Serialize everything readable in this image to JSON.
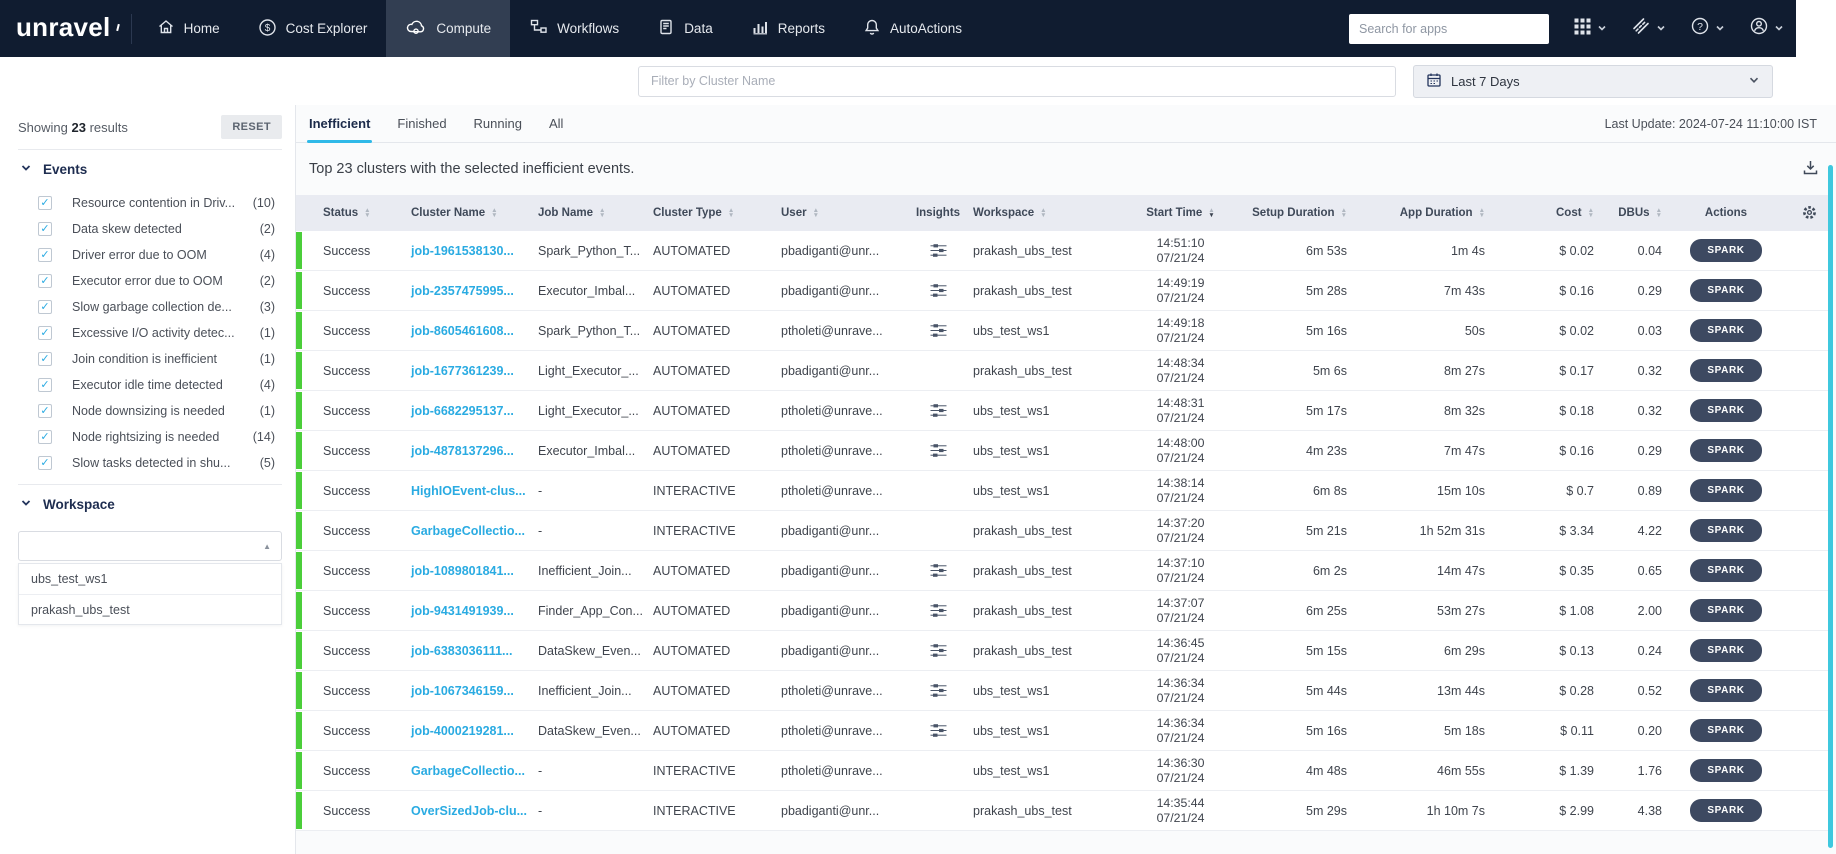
{
  "nav": {
    "logo": "unravel",
    "items": [
      {
        "label": "Home"
      },
      {
        "label": "Cost Explorer"
      },
      {
        "label": "Compute",
        "active": true
      },
      {
        "label": "Workflows"
      },
      {
        "label": "Data"
      },
      {
        "label": "Reports"
      },
      {
        "label": "AutoActions"
      }
    ],
    "search_placeholder": "Search for apps"
  },
  "filter_bar": {
    "cluster_filter_placeholder": "Filter by Cluster Name",
    "date_range_label": "Last 7 Days"
  },
  "sidebar": {
    "results_prefix": "Showing",
    "results_count": "23",
    "results_suffix": "results",
    "reset_label": "RESET",
    "events": {
      "title": "Events",
      "items": [
        {
          "label": "Resource contention in Driv...",
          "count": "(10)"
        },
        {
          "label": "Data skew detected",
          "count": "(2)"
        },
        {
          "label": "Driver error due to OOM",
          "count": "(4)"
        },
        {
          "label": "Executor error due to OOM",
          "count": "(2)"
        },
        {
          "label": "Slow garbage collection de...",
          "count": "(3)"
        },
        {
          "label": "Excessive I/O activity detec...",
          "count": "(1)"
        },
        {
          "label": "Join condition is inefficient",
          "count": "(1)"
        },
        {
          "label": "Executor idle time detected",
          "count": "(4)"
        },
        {
          "label": "Node downsizing is needed",
          "count": "(1)"
        },
        {
          "label": "Node rightsizing is needed",
          "count": "(14)"
        },
        {
          "label": "Slow tasks detected in shu...",
          "count": "(5)"
        }
      ]
    },
    "workspace": {
      "title": "Workspace",
      "options": [
        "ubs_test_ws1",
        "prakash_ubs_test"
      ]
    }
  },
  "toolbar": {
    "tabs": [
      {
        "label": "Inefficient",
        "active": true
      },
      {
        "label": "Finished"
      },
      {
        "label": "Running"
      },
      {
        "label": "All"
      }
    ],
    "last_update": "Last Update: 2024-07-24 11:10:00 IST"
  },
  "table": {
    "title": "Top 23 clusters with the selected inefficient events.",
    "columns": [
      "Status",
      "Cluster Name",
      "Job Name",
      "Cluster Type",
      "User",
      "Insights",
      "Workspace",
      "Start Time",
      "Setup Duration",
      "App Duration",
      "Cost",
      "DBUs",
      "Actions"
    ],
    "rows": [
      {
        "status": "Success",
        "cluster_name": "job-1961538130...",
        "job_name": "Spark_Python_T...",
        "cluster_type": "AUTOMATED",
        "user": "pbadiganti@unr...",
        "has_insights": true,
        "workspace": "prakash_ubs_test",
        "start_time": "14:51:10",
        "start_date": "07/21/24",
        "setup_duration": "6m 53s",
        "app_duration": "1m 4s",
        "cost": "$ 0.02",
        "dbus": "0.04",
        "action": "SPARK"
      },
      {
        "status": "Success",
        "cluster_name": "job-2357475995...",
        "job_name": "Executor_Imbal...",
        "cluster_type": "AUTOMATED",
        "user": "pbadiganti@unr...",
        "has_insights": true,
        "workspace": "prakash_ubs_test",
        "start_time": "14:49:19",
        "start_date": "07/21/24",
        "setup_duration": "5m 28s",
        "app_duration": "7m 43s",
        "cost": "$ 0.16",
        "dbus": "0.29",
        "action": "SPARK"
      },
      {
        "status": "Success",
        "cluster_name": "job-8605461608...",
        "job_name": "Spark_Python_T...",
        "cluster_type": "AUTOMATED",
        "user": "ptholeti@unrave...",
        "has_insights": true,
        "workspace": "ubs_test_ws1",
        "start_time": "14:49:18",
        "start_date": "07/21/24",
        "setup_duration": "5m 16s",
        "app_duration": "50s",
        "cost": "$ 0.02",
        "dbus": "0.03",
        "action": "SPARK"
      },
      {
        "status": "Success",
        "cluster_name": "job-1677361239...",
        "job_name": "Light_Executor_...",
        "cluster_type": "AUTOMATED",
        "user": "pbadiganti@unr...",
        "has_insights": false,
        "workspace": "prakash_ubs_test",
        "start_time": "14:48:34",
        "start_date": "07/21/24",
        "setup_duration": "5m 6s",
        "app_duration": "8m 27s",
        "cost": "$ 0.17",
        "dbus": "0.32",
        "action": "SPARK"
      },
      {
        "status": "Success",
        "cluster_name": "job-6682295137...",
        "job_name": "Light_Executor_...",
        "cluster_type": "AUTOMATED",
        "user": "ptholeti@unrave...",
        "has_insights": true,
        "workspace": "ubs_test_ws1",
        "start_time": "14:48:31",
        "start_date": "07/21/24",
        "setup_duration": "5m 17s",
        "app_duration": "8m 32s",
        "cost": "$ 0.18",
        "dbus": "0.32",
        "action": "SPARK"
      },
      {
        "status": "Success",
        "cluster_name": "job-4878137296...",
        "job_name": "Executor_Imbal...",
        "cluster_type": "AUTOMATED",
        "user": "ptholeti@unrave...",
        "has_insights": true,
        "workspace": "ubs_test_ws1",
        "start_time": "14:48:00",
        "start_date": "07/21/24",
        "setup_duration": "4m 23s",
        "app_duration": "7m 47s",
        "cost": "$ 0.16",
        "dbus": "0.29",
        "action": "SPARK"
      },
      {
        "status": "Success",
        "cluster_name": "HighIOEvent-clus...",
        "job_name": "-",
        "cluster_type": "INTERACTIVE",
        "user": "ptholeti@unrave...",
        "has_insights": false,
        "workspace": "ubs_test_ws1",
        "start_time": "14:38:14",
        "start_date": "07/21/24",
        "setup_duration": "6m 8s",
        "app_duration": "15m 10s",
        "cost": "$ 0.7",
        "dbus": "0.89",
        "action": "SPARK"
      },
      {
        "status": "Success",
        "cluster_name": "GarbageCollectio...",
        "job_name": "-",
        "cluster_type": "INTERACTIVE",
        "user": "pbadiganti@unr...",
        "has_insights": false,
        "workspace": "prakash_ubs_test",
        "start_time": "14:37:20",
        "start_date": "07/21/24",
        "setup_duration": "5m 21s",
        "app_duration": "1h 52m 31s",
        "cost": "$ 3.34",
        "dbus": "4.22",
        "action": "SPARK"
      },
      {
        "status": "Success",
        "cluster_name": "job-1089801841...",
        "job_name": "Inefficient_Join...",
        "cluster_type": "AUTOMATED",
        "user": "pbadiganti@unr...",
        "has_insights": true,
        "workspace": "prakash_ubs_test",
        "start_time": "14:37:10",
        "start_date": "07/21/24",
        "setup_duration": "6m 2s",
        "app_duration": "14m 47s",
        "cost": "$ 0.35",
        "dbus": "0.65",
        "action": "SPARK"
      },
      {
        "status": "Success",
        "cluster_name": "job-9431491939...",
        "job_name": "Finder_App_Con...",
        "cluster_type": "AUTOMATED",
        "user": "pbadiganti@unr...",
        "has_insights": true,
        "workspace": "prakash_ubs_test",
        "start_time": "14:37:07",
        "start_date": "07/21/24",
        "setup_duration": "6m 25s",
        "app_duration": "53m 27s",
        "cost": "$ 1.08",
        "dbus": "2.00",
        "action": "SPARK"
      },
      {
        "status": "Success",
        "cluster_name": "job-6383036111...",
        "job_name": "DataSkew_Even...",
        "cluster_type": "AUTOMATED",
        "user": "pbadiganti@unr...",
        "has_insights": true,
        "workspace": "prakash_ubs_test",
        "start_time": "14:36:45",
        "start_date": "07/21/24",
        "setup_duration": "5m 15s",
        "app_duration": "6m 29s",
        "cost": "$ 0.13",
        "dbus": "0.24",
        "action": "SPARK"
      },
      {
        "status": "Success",
        "cluster_name": "job-1067346159...",
        "job_name": "Inefficient_Join...",
        "cluster_type": "AUTOMATED",
        "user": "ptholeti@unrave...",
        "has_insights": true,
        "workspace": "ubs_test_ws1",
        "start_time": "14:36:34",
        "start_date": "07/21/24",
        "setup_duration": "5m 44s",
        "app_duration": "13m 44s",
        "cost": "$ 0.28",
        "dbus": "0.52",
        "action": "SPARK"
      },
      {
        "status": "Success",
        "cluster_name": "job-4000219281...",
        "job_name": "DataSkew_Even...",
        "cluster_type": "AUTOMATED",
        "user": "ptholeti@unrave...",
        "has_insights": true,
        "workspace": "ubs_test_ws1",
        "start_time": "14:36:34",
        "start_date": "07/21/24",
        "setup_duration": "5m 16s",
        "app_duration": "5m 18s",
        "cost": "$ 0.11",
        "dbus": "0.20",
        "action": "SPARK"
      },
      {
        "status": "Success",
        "cluster_name": "GarbageCollectio...",
        "job_name": "-",
        "cluster_type": "INTERACTIVE",
        "user": "ptholeti@unrave...",
        "has_insights": false,
        "workspace": "ubs_test_ws1",
        "start_time": "14:36:30",
        "start_date": "07/21/24",
        "setup_duration": "4m 48s",
        "app_duration": "46m 55s",
        "cost": "$ 1.39",
        "dbus": "1.76",
        "action": "SPARK"
      },
      {
        "status": "Success",
        "cluster_name": "OverSizedJob-clu...",
        "job_name": "-",
        "cluster_type": "INTERACTIVE",
        "user": "pbadiganti@unr...",
        "has_insights": false,
        "workspace": "prakash_ubs_test",
        "start_time": "14:35:44",
        "start_date": "07/21/24",
        "setup_duration": "5m 29s",
        "app_duration": "1h 10m 7s",
        "cost": "$ 2.99",
        "dbus": "4.38",
        "action": "SPARK"
      }
    ]
  },
  "colors": {
    "navbar_bg": "#101c30",
    "accent_blue": "#2aabe2",
    "status_green": "#4bce3a",
    "tab_underline": "#2fb9e8",
    "spark_pill": "#3d4961"
  }
}
